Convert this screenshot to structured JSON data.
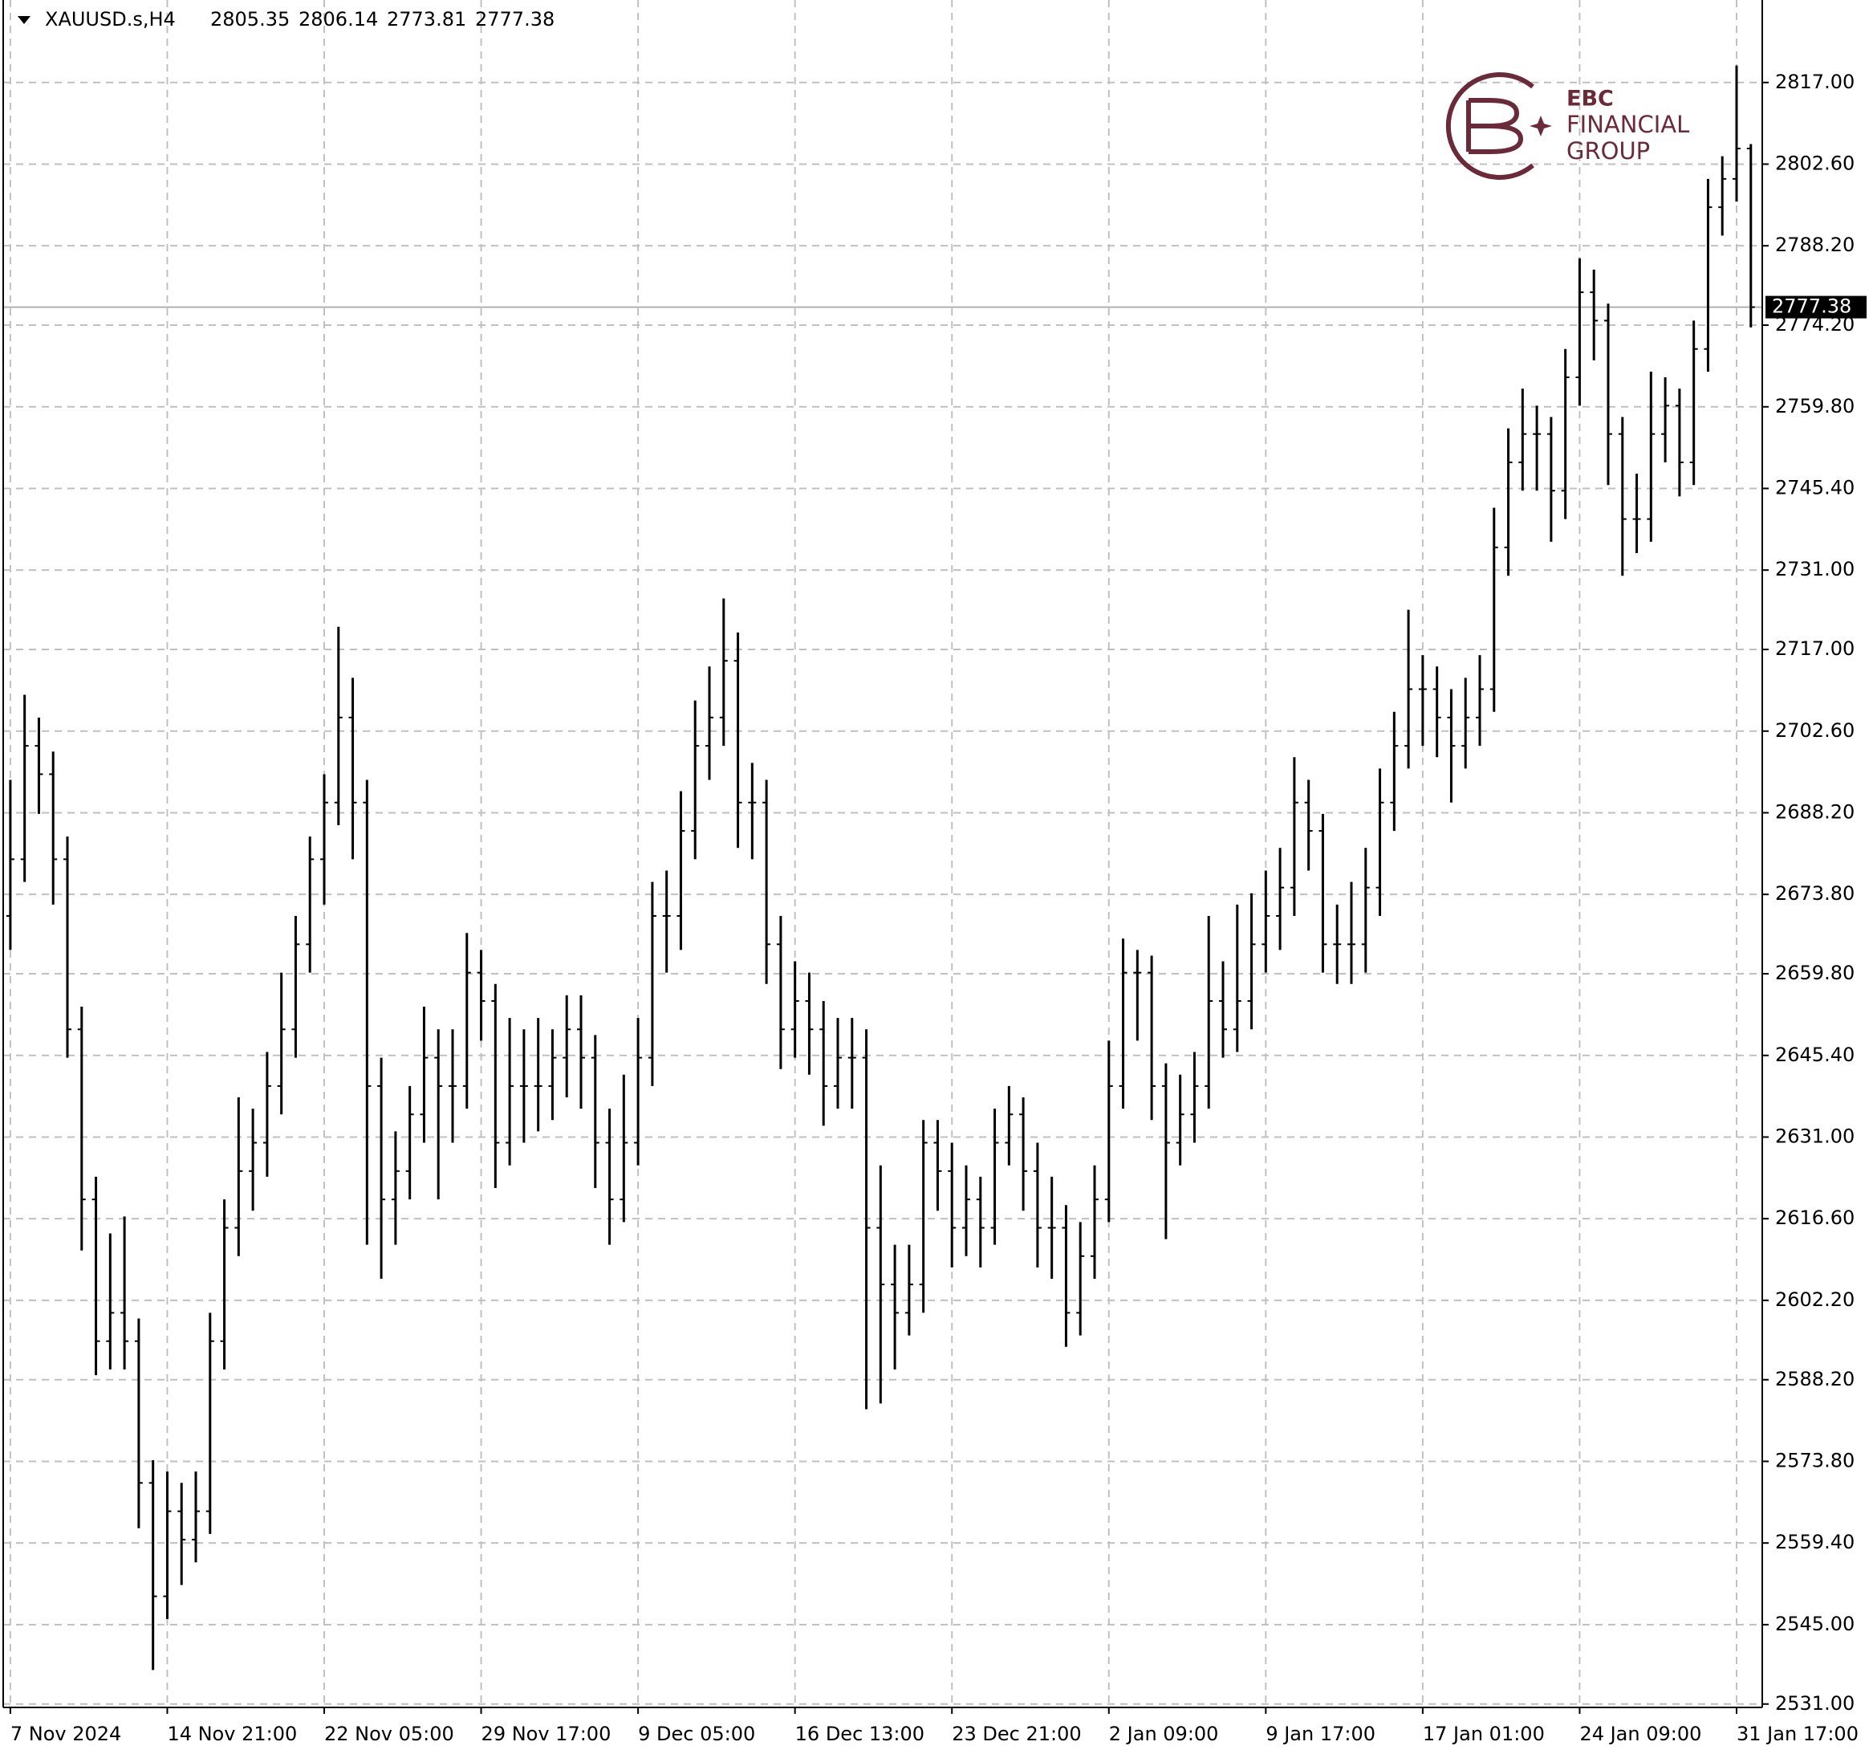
{
  "chart_data": {
    "type": "ohlc",
    "symbol": "XAUUSD.s,H4",
    "color": "#000000",
    "grid": true,
    "logo": [
      "EBC",
      "FINANCIAL",
      "GROUP"
    ],
    "ylim": [
      2530.4,
      2831.55
    ],
    "yticks": [
      {
        "value": 2531,
        "label": "2531.00"
      },
      {
        "value": 2545,
        "label": "2545.00"
      },
      {
        "value": 2559.4,
        "label": "2559.40"
      },
      {
        "value": 2573.8,
        "label": "2573.80"
      },
      {
        "value": 2588.2,
        "label": "2588.20"
      },
      {
        "value": 2602.2,
        "label": "2602.20"
      },
      {
        "value": 2616.6,
        "label": "2616.60"
      },
      {
        "value": 2631,
        "label": "2631.00"
      },
      {
        "value": 2645.4,
        "label": "2645.40"
      },
      {
        "value": 2659.8,
        "label": "2659.80"
      },
      {
        "value": 2673.8,
        "label": "2673.80"
      },
      {
        "value": 2688.2,
        "label": "2688.20"
      },
      {
        "value": 2702.6,
        "label": "2702.60"
      },
      {
        "value": 2717,
        "label": "2717.00"
      },
      {
        "value": 2731,
        "label": "2731.00"
      },
      {
        "value": 2745.4,
        "label": "2745.40"
      },
      {
        "value": 2759.8,
        "label": "2759.80"
      },
      {
        "value": 2774.2,
        "label": "2774.20"
      },
      {
        "value": 2788.2,
        "label": "2788.20"
      },
      {
        "value": 2802.6,
        "label": "2802.60"
      },
      {
        "value": 2817,
        "label": "2817.00"
      }
    ],
    "xlim": [
      -0.5,
      122.8
    ],
    "xticks": [
      {
        "value": 0,
        "label": "7 Nov 2024"
      },
      {
        "value": 11,
        "label": "14 Nov 21:00"
      },
      {
        "value": 22,
        "label": "22 Nov 05:00"
      },
      {
        "value": 33,
        "label": "29 Nov 17:00"
      },
      {
        "value": 44,
        "label": "9 Dec 05:00"
      },
      {
        "value": 55,
        "label": "16 Dec 13:00"
      },
      {
        "value": 66,
        "label": "23 Dec 21:00"
      },
      {
        "value": 77,
        "label": "2 Jan 09:00"
      },
      {
        "value": 88,
        "label": "9 Jan 17:00"
      },
      {
        "value": 99,
        "label": "17 Jan 01:00"
      },
      {
        "value": 110,
        "label": "24 Jan 09:00"
      },
      {
        "value": 121,
        "label": "31 Jan 17:00"
      }
    ],
    "ohlc": [
      [
        2670,
        2694,
        2664,
        2680
      ],
      [
        2680,
        2709,
        2676,
        2700
      ],
      [
        2700,
        2705,
        2688,
        2695
      ],
      [
        2695,
        2699,
        2672,
        2680
      ],
      [
        2680,
        2684,
        2645,
        2650
      ],
      [
        2650,
        2654,
        2611,
        2620
      ],
      [
        2620,
        2624,
        2589,
        2595
      ],
      [
        2595,
        2614,
        2590,
        2600
      ],
      [
        2600,
        2617,
        2590,
        2595
      ],
      [
        2595,
        2599,
        2562,
        2570
      ],
      [
        2570,
        2574,
        2537,
        2550
      ],
      [
        2550,
        2572,
        2546,
        2565
      ],
      [
        2565,
        2570,
        2552,
        2560
      ],
      [
        2560,
        2572,
        2556,
        2565
      ],
      [
        2565,
        2600,
        2561,
        2595
      ],
      [
        2595,
        2620,
        2590,
        2615
      ],
      [
        2615,
        2638,
        2610,
        2625
      ],
      [
        2625,
        2636,
        2618,
        2630
      ],
      [
        2630,
        2646,
        2624,
        2640
      ],
      [
        2640,
        2660,
        2635,
        2650
      ],
      [
        2650,
        2670,
        2645,
        2665
      ],
      [
        2665,
        2684,
        2660,
        2680
      ],
      [
        2680,
        2695,
        2672,
        2690
      ],
      [
        2690,
        2721,
        2686,
        2705
      ],
      [
        2705,
        2712,
        2680,
        2690
      ],
      [
        2690,
        2694,
        2612,
        2640
      ],
      [
        2640,
        2645,
        2606,
        2620
      ],
      [
        2620,
        2632,
        2612,
        2625
      ],
      [
        2625,
        2640,
        2620,
        2635
      ],
      [
        2635,
        2654,
        2630,
        2645
      ],
      [
        2645,
        2650,
        2620,
        2640
      ],
      [
        2640,
        2650,
        2630,
        2640
      ],
      [
        2640,
        2667,
        2636,
        2660
      ],
      [
        2660,
        2664,
        2648,
        2655
      ],
      [
        2655,
        2658,
        2622,
        2630
      ],
      [
        2630,
        2652,
        2626,
        2640
      ],
      [
        2640,
        2650,
        2630,
        2640
      ],
      [
        2640,
        2652,
        2632,
        2640
      ],
      [
        2640,
        2650,
        2634,
        2645
      ],
      [
        2645,
        2656,
        2638,
        2650
      ],
      [
        2650,
        2656,
        2636,
        2645
      ],
      [
        2645,
        2649,
        2622,
        2630
      ],
      [
        2630,
        2636,
        2612,
        2620
      ],
      [
        2620,
        2642,
        2616,
        2630
      ],
      [
        2630,
        2652,
        2626,
        2645
      ],
      [
        2645,
        2676,
        2640,
        2670
      ],
      [
        2670,
        2678,
        2660,
        2670
      ],
      [
        2670,
        2692,
        2664,
        2685
      ],
      [
        2685,
        2708,
        2680,
        2700
      ],
      [
        2700,
        2714,
        2694,
        2705
      ],
      [
        2705,
        2726,
        2700,
        2715
      ],
      [
        2715,
        2720,
        2682,
        2690
      ],
      [
        2690,
        2697,
        2680,
        2690
      ],
      [
        2690,
        2694,
        2658,
        2665
      ],
      [
        2665,
        2670,
        2643,
        2650
      ],
      [
        2650,
        2662,
        2645,
        2655
      ],
      [
        2655,
        2660,
        2642,
        2650
      ],
      [
        2650,
        2655,
        2633,
        2640
      ],
      [
        2640,
        2652,
        2636,
        2645
      ],
      [
        2645,
        2652,
        2636,
        2645
      ],
      [
        2645,
        2650,
        2583,
        2615
      ],
      [
        2615,
        2626,
        2584,
        2605
      ],
      [
        2605,
        2612,
        2590,
        2600
      ],
      [
        2600,
        2612,
        2596,
        2605
      ],
      [
        2605,
        2634,
        2600,
        2630
      ],
      [
        2630,
        2634,
        2618,
        2625
      ],
      [
        2625,
        2630,
        2608,
        2615
      ],
      [
        2615,
        2626,
        2610,
        2620
      ],
      [
        2620,
        2624,
        2608,
        2615
      ],
      [
        2615,
        2636,
        2612,
        2630
      ],
      [
        2630,
        2640,
        2626,
        2635
      ],
      [
        2635,
        2638,
        2618,
        2625
      ],
      [
        2625,
        2630,
        2608,
        2615
      ],
      [
        2615,
        2624,
        2606,
        2615
      ],
      [
        2615,
        2619,
        2594,
        2600
      ],
      [
        2600,
        2616,
        2596,
        2610
      ],
      [
        2610,
        2626,
        2606,
        2620
      ],
      [
        2620,
        2648,
        2616,
        2640
      ],
      [
        2640,
        2666,
        2636,
        2660
      ],
      [
        2660,
        2664,
        2648,
        2660
      ],
      [
        2660,
        2663,
        2634,
        2640
      ],
      [
        2640,
        2644,
        2613,
        2630
      ],
      [
        2630,
        2642,
        2626,
        2635
      ],
      [
        2635,
        2646,
        2630,
        2640
      ],
      [
        2640,
        2670,
        2636,
        2655
      ],
      [
        2655,
        2662,
        2645,
        2650
      ],
      [
        2650,
        2672,
        2646,
        2655
      ],
      [
        2655,
        2674,
        2650,
        2665
      ],
      [
        2665,
        2678,
        2660,
        2670
      ],
      [
        2670,
        2682,
        2664,
        2675
      ],
      [
        2675,
        2698,
        2670,
        2690
      ],
      [
        2690,
        2694,
        2678,
        2685
      ],
      [
        2685,
        2688,
        2660,
        2665
      ],
      [
        2665,
        2672,
        2658,
        2665
      ],
      [
        2665,
        2676,
        2658,
        2665
      ],
      [
        2665,
        2682,
        2660,
        2675
      ],
      [
        2675,
        2696,
        2670,
        2690
      ],
      [
        2690,
        2706,
        2685,
        2700
      ],
      [
        2700,
        2724,
        2696,
        2710
      ],
      [
        2710,
        2716,
        2700,
        2710
      ],
      [
        2710,
        2714,
        2698,
        2705
      ],
      [
        2705,
        2710,
        2690,
        2700
      ],
      [
        2700,
        2712,
        2696,
        2705
      ],
      [
        2705,
        2716,
        2700,
        2710
      ],
      [
        2710,
        2742,
        2706,
        2735
      ],
      [
        2735,
        2756,
        2730,
        2750
      ],
      [
        2750,
        2763,
        2745,
        2755
      ],
      [
        2755,
        2760,
        2745,
        2755
      ],
      [
        2755,
        2758,
        2736,
        2745
      ],
      [
        2745,
        2770,
        2740,
        2765
      ],
      [
        2765,
        2786,
        2760,
        2780
      ],
      [
        2780,
        2784,
        2768,
        2775
      ],
      [
        2775,
        2778,
        2746,
        2755
      ],
      [
        2755,
        2758,
        2730,
        2740
      ],
      [
        2740,
        2748,
        2734,
        2740
      ],
      [
        2740,
        2766,
        2736,
        2755
      ],
      [
        2755,
        2765,
        2750,
        2760
      ],
      [
        2760,
        2763,
        2744,
        2750
      ],
      [
        2750,
        2775,
        2746,
        2770
      ],
      [
        2770,
        2800,
        2766,
        2795
      ],
      [
        2795,
        2804,
        2790,
        2800
      ],
      [
        2800,
        2820,
        2796,
        2805.35
      ],
      [
        2805.35,
        2806.14,
        2773.81,
        2777.38
      ]
    ]
  }
}
